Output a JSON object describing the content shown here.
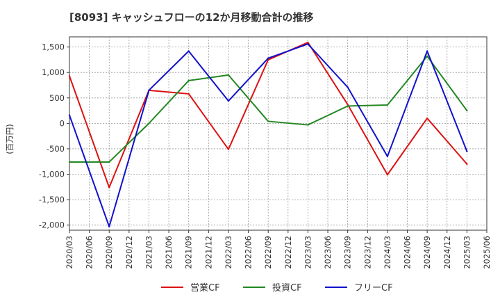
{
  "chart_data": {
    "type": "line",
    "title": "[8093]  キャッシュフローの12か月移動合計の推移",
    "ylabel": "(百万円)",
    "xlabel": "",
    "ylim": [
      -2100,
      1700
    ],
    "yticks": [
      -2000,
      -1500,
      -1000,
      -500,
      0,
      500,
      1000,
      1500
    ],
    "ytick_labels": [
      "-2,000",
      "-1,500",
      "-1,000",
      "-500",
      "0",
      "500",
      "1,000",
      "1,500"
    ],
    "categories": [
      "2020/03",
      "2020/06",
      "2020/09",
      "2020/12",
      "2021/03",
      "2021/06",
      "2021/09",
      "2021/12",
      "2022/03",
      "2022/06",
      "2022/09",
      "2022/12",
      "2023/03",
      "2023/06",
      "2023/09",
      "2023/12",
      "2024/03",
      "2024/06",
      "2024/09",
      "2024/12",
      "2025/03",
      "2025/06"
    ],
    "grid": true,
    "legend_position": "bottom",
    "series": [
      {
        "name": "営業CF",
        "color": "#dd1111",
        "x": [
          "2020/03",
          "2020/09",
          "2021/03",
          "2021/09",
          "2022/03",
          "2022/09",
          "2023/03",
          "2023/09",
          "2024/03",
          "2024/09",
          "2025/03"
        ],
        "values": [
          930,
          -1260,
          650,
          580,
          -510,
          1250,
          1590,
          370,
          -1010,
          100,
          -800
        ]
      },
      {
        "name": "投資CF",
        "color": "#228822",
        "x": [
          "2020/03",
          "2020/09",
          "2021/03",
          "2021/09",
          "2022/03",
          "2022/09",
          "2023/03",
          "2023/09",
          "2024/03",
          "2024/09",
          "2025/03"
        ],
        "values": [
          -760,
          -760,
          0,
          840,
          950,
          40,
          -30,
          340,
          360,
          1320,
          250
        ]
      },
      {
        "name": "フリーCF",
        "color": "#1111cc",
        "x": [
          "2020/03",
          "2020/09",
          "2021/03",
          "2021/09",
          "2022/03",
          "2022/09",
          "2023/03",
          "2023/09",
          "2024/03",
          "2024/09",
          "2025/03"
        ],
        "values": [
          160,
          -2030,
          650,
          1420,
          440,
          1280,
          1560,
          710,
          -650,
          1420,
          -550
        ]
      }
    ]
  }
}
